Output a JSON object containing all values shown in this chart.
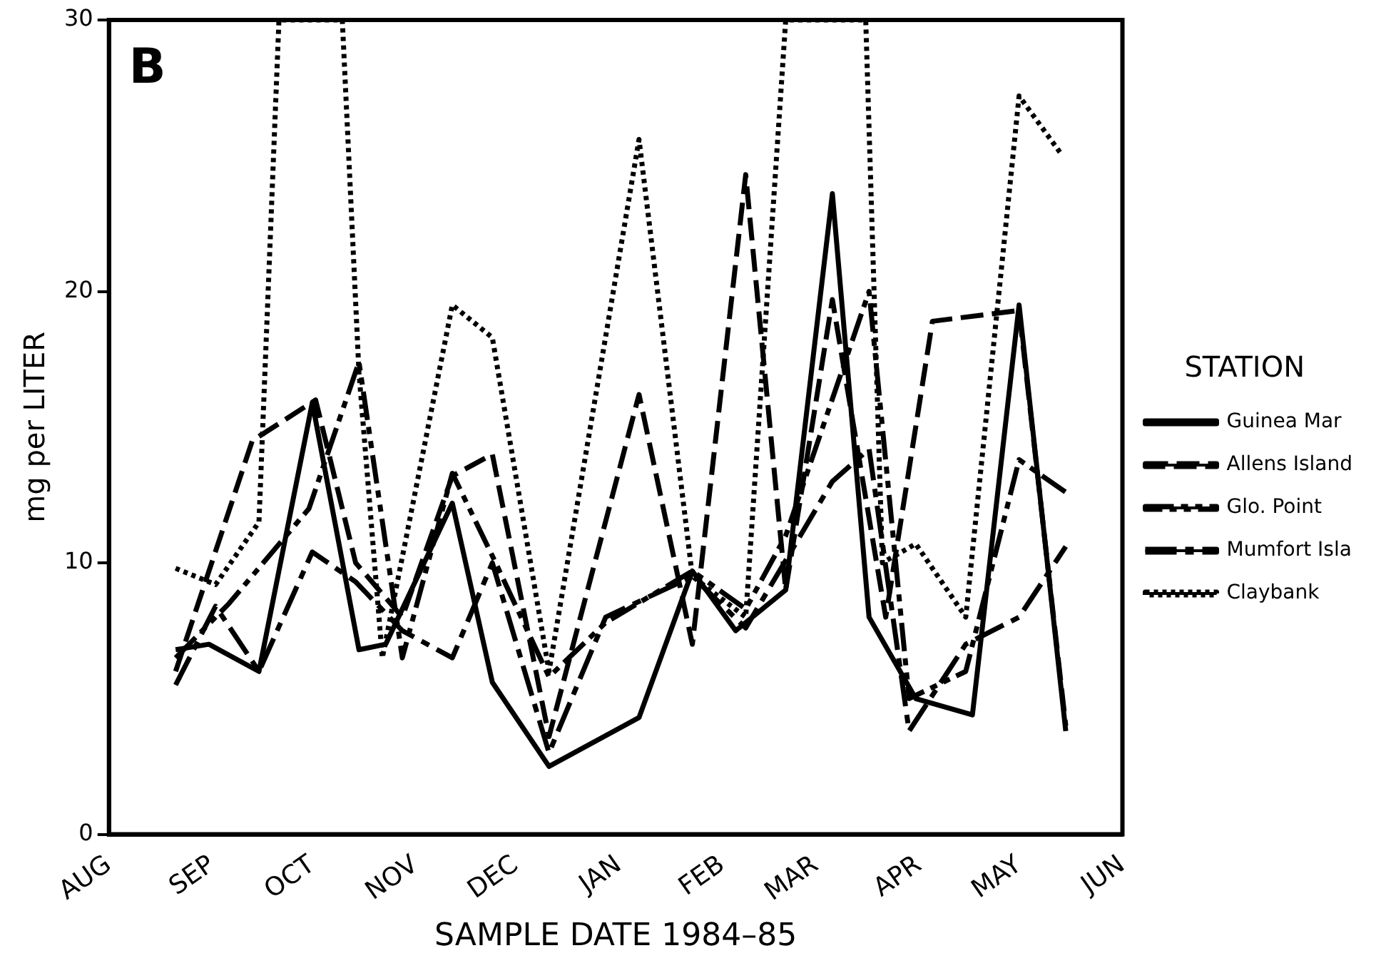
{
  "chart_data": {
    "type": "line",
    "xlabel": "SAMPLE DATE 1984–85",
    "ylabel": "mg per LITER",
    "legend_title": "STATION",
    "legend": "right",
    "grid": false,
    "marker": "none",
    "annotations": [
      "B"
    ],
    "xlim": [
      "1984-08-01",
      "1985-06-01"
    ],
    "xticks": [
      {
        "value": "1984-08-01",
        "label": "AUG"
      },
      {
        "value": "1984-09-01",
        "label": "SEP"
      },
      {
        "value": "1984-10-01",
        "label": "OCT"
      },
      {
        "value": "1984-11-01",
        "label": "NOV"
      },
      {
        "value": "1984-12-01",
        "label": "DEC"
      },
      {
        "value": "1985-01-01",
        "label": "JAN"
      },
      {
        "value": "1985-02-01",
        "label": "FEB"
      },
      {
        "value": "1985-03-01",
        "label": "MAR"
      },
      {
        "value": "1985-04-01",
        "label": "APR"
      },
      {
        "value": "1985-05-01",
        "label": "MAY"
      },
      {
        "value": "1985-06-01",
        "label": "JUN"
      }
    ],
    "ylim": [
      0,
      30
    ],
    "yticks": [
      0,
      10,
      20,
      30
    ],
    "series": [
      {
        "name": "Guinea Mar",
        "color": "#000000",
        "line_style": "solid",
        "x": [
          "1984-08-21",
          "1984-08-31",
          "1984-09-15",
          "1984-10-01",
          "1984-10-15",
          "1984-10-23",
          "1984-11-12",
          "1984-11-24",
          "1984-12-11",
          "1985-01-07",
          "1985-01-23",
          "1985-02-05",
          "1985-02-20",
          "1985-03-06",
          "1985-03-17",
          "1985-03-31",
          "1985-04-17",
          "1985-05-01",
          "1985-05-15"
        ],
        "values": [
          6.8,
          7,
          6,
          15.9,
          6.8,
          7,
          12.2,
          5.6,
          2.5,
          4.3,
          9.7,
          7.5,
          9,
          23.6,
          8,
          5,
          4.4,
          19.5,
          3.8
        ]
      },
      {
        "name": "Allens Island",
        "color": "#000000",
        "line_style": "dashed",
        "x": [
          "1984-08-21",
          "1984-09-13",
          "1984-10-02",
          "1984-10-14",
          "1984-10-28",
          "1984-11-12",
          "1984-11-24",
          "1984-12-11",
          "1985-01-07",
          "1985-01-23",
          "1985-02-08",
          "1985-02-20",
          "1985-03-06",
          "1985-03-22",
          "1985-04-05",
          "1985-05-01",
          "1985-05-15"
        ],
        "values": [
          6,
          14.5,
          16,
          10,
          8,
          13.2,
          14,
          3.6,
          16.2,
          7,
          24.3,
          9,
          19.7,
          8,
          18.9,
          19.3,
          4
        ]
      },
      {
        "name": "Glo. Point",
        "color": "#000000",
        "line_style": "dashed",
        "x": [
          "1984-08-21",
          "1984-09-06",
          "1984-09-30",
          "1984-10-15",
          "1984-10-28",
          "1984-11-12",
          "1984-11-25",
          "1984-12-11",
          "1984-12-28",
          "1985-01-23",
          "1985-02-08",
          "1985-02-20",
          "1985-03-17",
          "1985-03-29",
          "1985-04-15",
          "1985-05-01",
          "1985-05-15"
        ],
        "values": [
          6.5,
          8.5,
          12,
          17.4,
          6.5,
          13.3,
          10,
          5.8,
          7.8,
          9.7,
          8.3,
          11,
          20,
          5,
          6,
          13.8,
          12.6
        ]
      },
      {
        "name": "Mumfort Isla",
        "color": "#000000",
        "line_style": "dashed",
        "x": [
          "1984-08-21",
          "1984-09-02",
          "1984-09-15",
          "1984-10-01",
          "1984-10-14",
          "1984-10-28",
          "1984-11-12",
          "1984-11-24",
          "1984-12-11",
          "1984-12-28",
          "1985-01-23",
          "1985-02-08",
          "1985-03-06",
          "1985-03-17",
          "1985-03-29",
          "1985-04-15",
          "1985-05-01",
          "1985-05-15"
        ],
        "values": [
          5.5,
          8.4,
          6,
          10.4,
          9.3,
          7.5,
          6.5,
          10,
          3,
          8,
          9.5,
          7.6,
          13,
          14.2,
          3.8,
          7,
          8,
          10.6
        ]
      },
      {
        "name": "Claybank",
        "color": "#000000",
        "line_style": "dotted",
        "x": [
          "1984-08-21",
          "1984-09-02",
          "1984-09-15",
          "1984-09-21",
          "1984-10-10",
          "1984-10-15",
          "1984-10-22",
          "1984-11-12",
          "1984-11-24",
          "1984-12-11",
          "1985-01-07",
          "1985-01-23",
          "1985-02-08",
          "1985-02-20",
          "1985-03-16",
          "1985-03-21",
          "1985-03-31",
          "1985-04-15",
          "1985-05-01",
          "1985-05-14"
        ],
        "values": [
          9.8,
          9.2,
          11.5,
          30,
          30,
          17,
          6.5,
          19.5,
          18.3,
          6,
          25.6,
          9.5,
          8,
          30,
          30,
          10,
          10.7,
          8,
          27.2,
          25
        ]
      }
    ]
  }
}
